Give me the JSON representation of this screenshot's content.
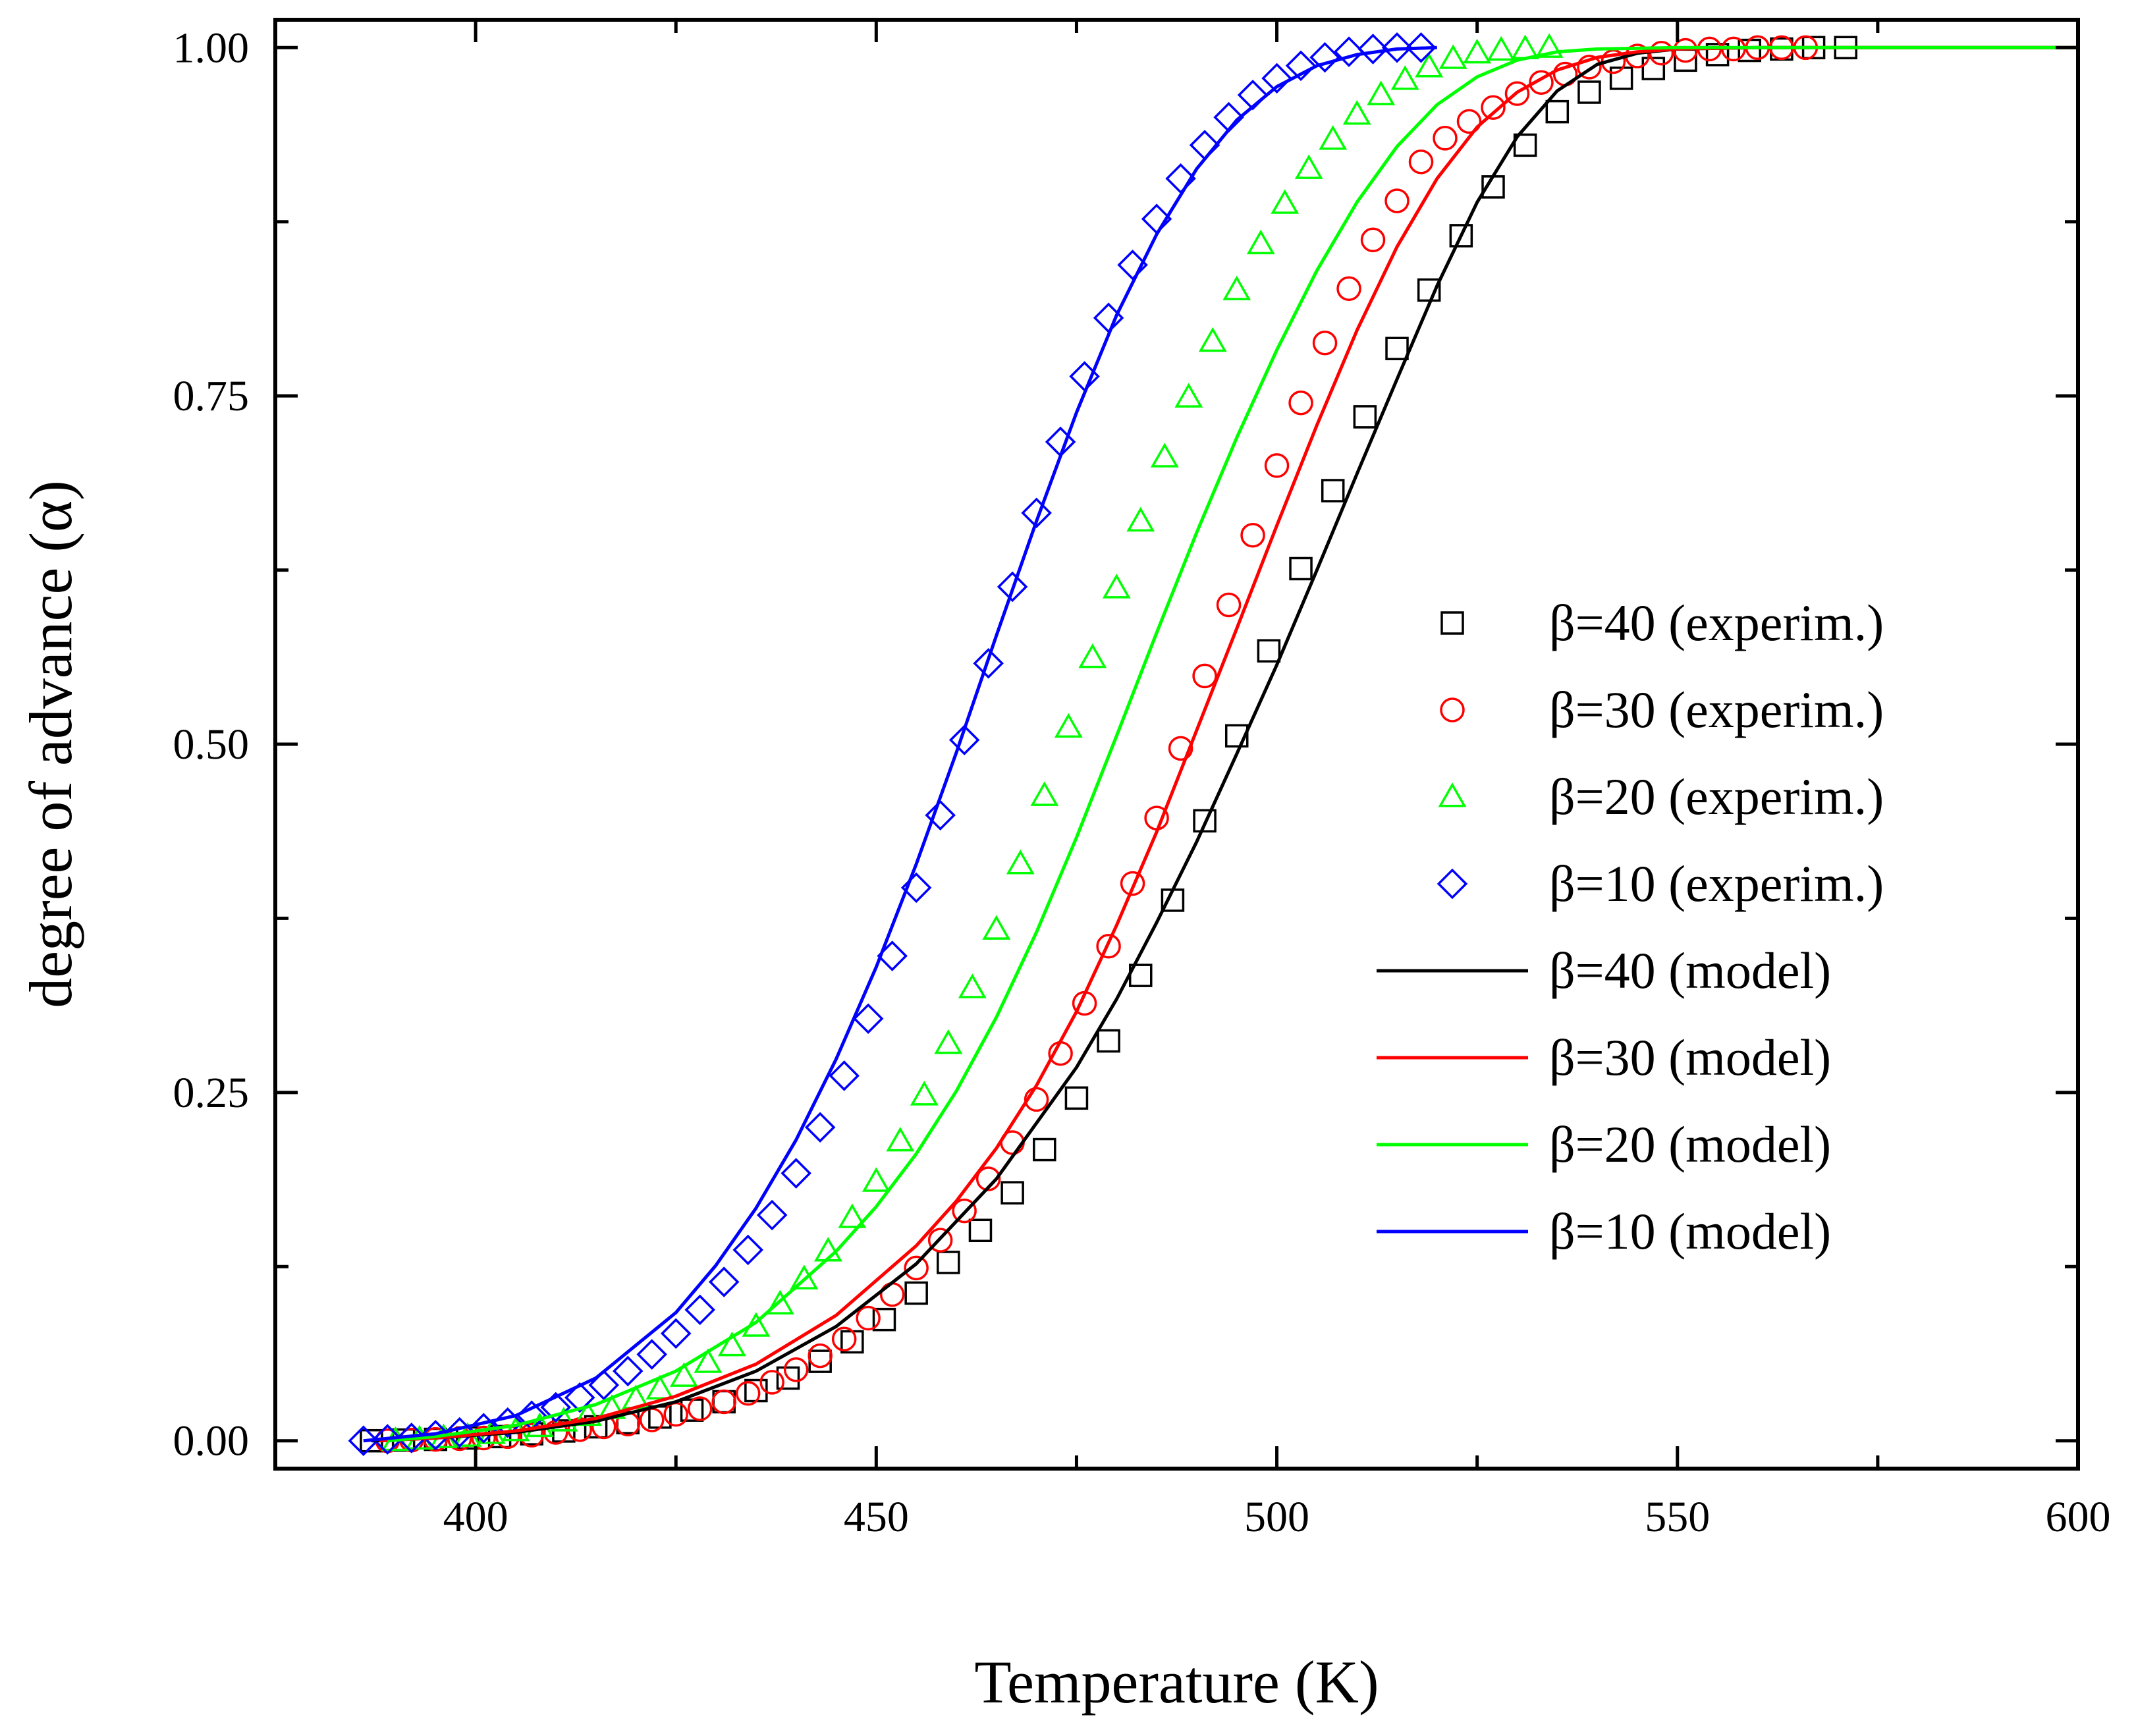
{
  "chart_data": {
    "type": "line",
    "title": "",
    "xlabel": "Temperature (K)",
    "ylabel": "degree of advance (α)",
    "xlim": [
      375,
      600
    ],
    "ylim": [
      -0.02,
      1.02
    ],
    "x_ticks": [
      400,
      450,
      500,
      550,
      600
    ],
    "x_tick_labels": [
      "400",
      "450",
      "500",
      "550",
      "600"
    ],
    "y_ticks": [
      0,
      0.25,
      0.5,
      0.75,
      1
    ],
    "y_tick_labels": [
      "0.00",
      "0.25",
      "0.50",
      "0.75",
      "1.00"
    ],
    "grid": false,
    "legend_position": "right",
    "series": [
      {
        "name": "β=40 (experim.)",
        "kind": "scatter",
        "marker": "square",
        "color": "#000000",
        "x": [
          387,
          391,
          395,
          399,
          403,
          407,
          411,
          415,
          419,
          423,
          427,
          431,
          435,
          439,
          443,
          447,
          451,
          455,
          459,
          463,
          467,
          471,
          475,
          479,
          483,
          487,
          491,
          495,
          499,
          503,
          507,
          511,
          515,
          519,
          523,
          527,
          531,
          535,
          539,
          543,
          547,
          551,
          555,
          559,
          563,
          567,
          571
        ],
        "y": [
          0,
          0.0005,
          0.001,
          0.002,
          0.003,
          0.005,
          0.007,
          0.01,
          0.013,
          0.017,
          0.022,
          0.028,
          0.036,
          0.045,
          0.057,
          0.071,
          0.087,
          0.106,
          0.128,
          0.151,
          0.178,
          0.209,
          0.246,
          0.287,
          0.334,
          0.388,
          0.445,
          0.506,
          0.567,
          0.626,
          0.682,
          0.735,
          0.784,
          0.826,
          0.865,
          0.9,
          0.93,
          0.954,
          0.968,
          0.978,
          0.985,
          0.991,
          0.995,
          0.998,
          0.999,
          1,
          1
        ]
      },
      {
        "name": "β=30 (experim.)",
        "kind": "scatter",
        "marker": "circle",
        "color": "#ff0000",
        "x": [
          389,
          392,
          395,
          398,
          401,
          404,
          407,
          410,
          413,
          416,
          419,
          422,
          425,
          428,
          431,
          434,
          437,
          440,
          443,
          446,
          449,
          452,
          455,
          458,
          461,
          464,
          467,
          470,
          473,
          476,
          479,
          482,
          485,
          488,
          491,
          494,
          497,
          500,
          503,
          506,
          509,
          512,
          515,
          518,
          521,
          524,
          527,
          530,
          533,
          536,
          539,
          542,
          545,
          548,
          551,
          554,
          557,
          560,
          563,
          566
        ],
        "y": [
          0,
          0.0005,
          0.001,
          0.0015,
          0.002,
          0.003,
          0.004,
          0.006,
          0.008,
          0.01,
          0.012,
          0.015,
          0.019,
          0.023,
          0.028,
          0.034,
          0.042,
          0.051,
          0.061,
          0.073,
          0.088,
          0.105,
          0.124,
          0.144,
          0.165,
          0.188,
          0.214,
          0.245,
          0.278,
          0.314,
          0.355,
          0.4,
          0.447,
          0.497,
          0.549,
          0.6,
          0.65,
          0.7,
          0.745,
          0.788,
          0.827,
          0.862,
          0.89,
          0.918,
          0.935,
          0.947,
          0.957,
          0.967,
          0.975,
          0.981,
          0.986,
          0.99,
          0.994,
          0.996,
          0.998,
          0.999,
          0.999,
          1,
          1,
          1
        ]
      },
      {
        "name": "β=20 (experim.)",
        "kind": "scatter",
        "marker": "triangle",
        "color": "#00ff00",
        "x": [
          390,
          393,
          396,
          399,
          402,
          405,
          408,
          411,
          414,
          417,
          420,
          423,
          426,
          429,
          432,
          435,
          438,
          441,
          444,
          447,
          450,
          453,
          456,
          459,
          462,
          465,
          468,
          471,
          474,
          477,
          480,
          483,
          486,
          489,
          492,
          495,
          498,
          501,
          504,
          507,
          510,
          513,
          516,
          519,
          522,
          525,
          528,
          531,
          534
        ],
        "y": [
          0,
          0.001,
          0.002,
          0.003,
          0.005,
          0.007,
          0.01,
          0.014,
          0.018,
          0.023,
          0.03,
          0.037,
          0.046,
          0.056,
          0.068,
          0.082,
          0.098,
          0.116,
          0.136,
          0.16,
          0.186,
          0.215,
          0.248,
          0.285,
          0.325,
          0.367,
          0.414,
          0.463,
          0.512,
          0.562,
          0.612,
          0.66,
          0.706,
          0.749,
          0.789,
          0.826,
          0.859,
          0.888,
          0.913,
          0.934,
          0.952,
          0.966,
          0.977,
          0.986,
          0.992,
          0.996,
          0.998,
          0.999,
          1
        ]
      },
      {
        "name": "β=10 (experim.)",
        "kind": "scatter",
        "marker": "diamond",
        "color": "#0000ff",
        "x": [
          386,
          389,
          392,
          395,
          398,
          401,
          404,
          407,
          410,
          413,
          416,
          419,
          422,
          425,
          428,
          431,
          434,
          437,
          440,
          443,
          446,
          449,
          452,
          455,
          458,
          461,
          464,
          467,
          470,
          473,
          476,
          479,
          482,
          485,
          488,
          491,
          494,
          497,
          500,
          503,
          506,
          509,
          512,
          515,
          518
        ],
        "y": [
          0,
          0.001,
          0.002,
          0.004,
          0.006,
          0.009,
          0.013,
          0.018,
          0.024,
          0.031,
          0.04,
          0.05,
          0.062,
          0.077,
          0.094,
          0.114,
          0.137,
          0.162,
          0.192,
          0.225,
          0.262,
          0.303,
          0.348,
          0.397,
          0.449,
          0.503,
          0.558,
          0.613,
          0.666,
          0.717,
          0.764,
          0.806,
          0.844,
          0.877,
          0.906,
          0.93,
          0.95,
          0.966,
          0.978,
          0.987,
          0.993,
          0.997,
          0.999,
          1,
          1
        ]
      },
      {
        "name": "β=40 (model)",
        "kind": "line",
        "color": "#000000",
        "x": [
          387,
          395,
          405,
          415,
          425,
          435,
          445,
          455,
          465,
          475,
          480,
          485,
          490,
          495,
          500,
          505,
          510,
          515,
          520,
          525,
          530,
          535,
          540,
          545,
          550,
          560,
          580,
          600
        ],
        "y": [
          0,
          0.002,
          0.006,
          0.014,
          0.028,
          0.05,
          0.082,
          0.127,
          0.188,
          0.268,
          0.317,
          0.372,
          0.43,
          0.493,
          0.557,
          0.625,
          0.694,
          0.762,
          0.829,
          0.889,
          0.936,
          0.969,
          0.988,
          0.996,
          0.999,
          1,
          1,
          1
        ]
      },
      {
        "name": "β=30 (model)",
        "kind": "line",
        "color": "#ff0000",
        "x": [
          388,
          395,
          405,
          415,
          425,
          435,
          445,
          455,
          460,
          465,
          470,
          475,
          480,
          485,
          490,
          495,
          500,
          505,
          510,
          515,
          520,
          525,
          530,
          535,
          540,
          545,
          550,
          560,
          580,
          600
        ],
        "y": [
          0,
          0.002,
          0.007,
          0.016,
          0.032,
          0.055,
          0.09,
          0.14,
          0.172,
          0.21,
          0.255,
          0.308,
          0.37,
          0.437,
          0.51,
          0.583,
          0.657,
          0.729,
          0.797,
          0.857,
          0.906,
          0.943,
          0.968,
          0.984,
          0.993,
          0.997,
          0.999,
          1,
          1,
          1
        ]
      },
      {
        "name": "β=20 (model)",
        "kind": "line",
        "color": "#00ff00",
        "x": [
          389,
          395,
          405,
          415,
          425,
          435,
          445,
          450,
          455,
          460,
          465,
          470,
          475,
          480,
          485,
          490,
          495,
          500,
          505,
          510,
          515,
          520,
          525,
          530,
          535,
          540,
          550,
          575,
          600
        ],
        "y": [
          0,
          0.003,
          0.011,
          0.026,
          0.05,
          0.085,
          0.136,
          0.168,
          0.206,
          0.251,
          0.304,
          0.365,
          0.433,
          0.506,
          0.58,
          0.652,
          0.72,
          0.783,
          0.84,
          0.889,
          0.929,
          0.959,
          0.979,
          0.991,
          0.997,
          0.999,
          1,
          1,
          1
        ]
      },
      {
        "name": "β=10 (model)",
        "kind": "line",
        "color": "#0000ff",
        "x": [
          386,
          395,
          405,
          415,
          425,
          430,
          435,
          440,
          445,
          450,
          455,
          460,
          465,
          470,
          475,
          480,
          485,
          490,
          495,
          500,
          505,
          510,
          515,
          520
        ],
        "y": [
          0,
          0.005,
          0.018,
          0.045,
          0.092,
          0.126,
          0.167,
          0.216,
          0.274,
          0.34,
          0.414,
          0.494,
          0.578,
          0.66,
          0.738,
          0.808,
          0.866,
          0.913,
          0.948,
          0.972,
          0.987,
          0.995,
          0.999,
          1
        ]
      }
    ]
  }
}
